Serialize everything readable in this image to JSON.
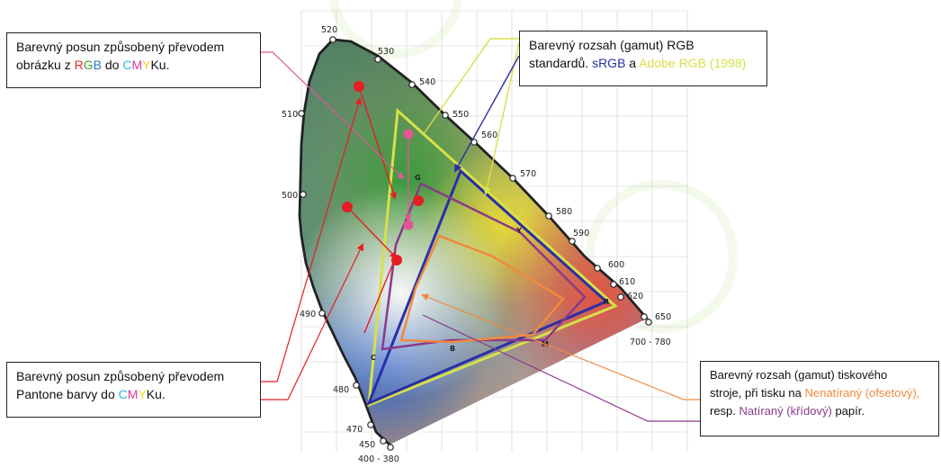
{
  "callouts": {
    "rgb_to_cmyk": {
      "line1": "Barevný posun způsobený převodem",
      "prefix": "obrázku z ",
      "rgb": [
        "R",
        "G",
        "B"
      ],
      "mid": " do ",
      "cmy": [
        "C",
        "M",
        "Y"
      ],
      "suffix": "Ku."
    },
    "pantone_to_cmyk": {
      "line1": "Barevný posun způsobený převodem",
      "prefix": "Pantone barvy do ",
      "cmy": [
        "C",
        "M",
        "Y"
      ],
      "suffix": "Ku."
    },
    "rgb_gamut": {
      "line1": "Barevný rozsah (gamut) RGB",
      "prefix": "standardů. ",
      "srgb": "sRGB",
      "mid": " a ",
      "adobe": "Adobe RGB (1998)"
    },
    "print_gamut": {
      "line1": "Barevný rozsah (gamut) tiskového",
      "line2_prefix": "stroje, při tisku na ",
      "uncoated": "Nenatíraný (ofsetový),",
      "line3_prefix": "resp. ",
      "coated": "Natíraný (křídový)",
      "line3_suffix": " papír."
    }
  },
  "wavelengths": [
    "520",
    "530",
    "540",
    "510",
    "550",
    "560",
    "570",
    "500",
    "580",
    "590",
    "600",
    "610",
    "620",
    "650",
    "700 - 780",
    "490",
    "480",
    "470",
    "450",
    "400 - 380"
  ],
  "vertices": [
    "G",
    "Y",
    "R",
    "C",
    "B",
    "M"
  ],
  "colors": {
    "red": "#e8262a",
    "green": "#3aa535",
    "blue": "#2f6fd0",
    "cyan": "#26b7e6",
    "magenta": "#e2379b",
    "yellow": "#f2dc1c",
    "srgb": "#2a2fa6",
    "adobe": "#d8e04a",
    "uncoated": "#f08a3e",
    "coated": "#8a3a8a",
    "locus": "#222222",
    "shift_red": "#e31e24",
    "shift_pink": "#e4559a"
  }
}
